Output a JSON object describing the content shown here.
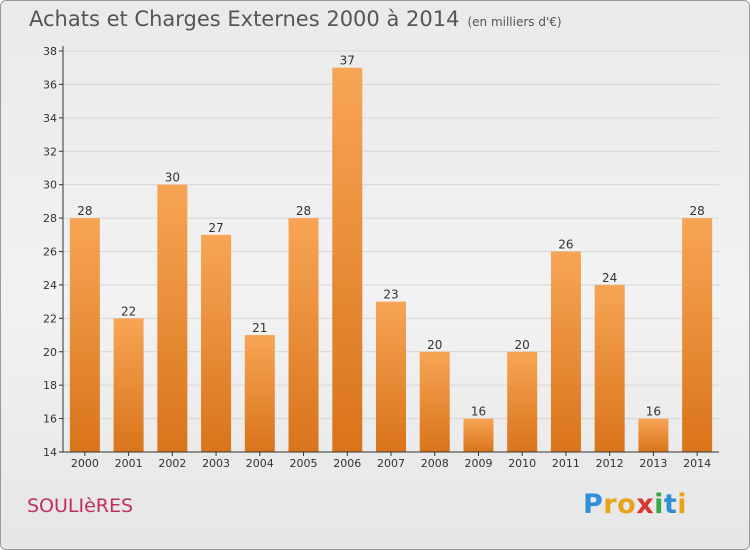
{
  "header": {
    "title": "Achats et Charges Externes 2000 à 2014",
    "subtitle": "(en milliers d'€)"
  },
  "footer": {
    "commune": "SOULIèRES",
    "brand_letters": [
      "P",
      "r",
      "o",
      "x",
      "i",
      "t",
      "i"
    ],
    "brand_colors": [
      "#2f8fd8",
      "#e8a21c",
      "#e8a21c",
      "#d8362f",
      "#3aa648",
      "#2f8fd8",
      "#e8a21c"
    ]
  },
  "colors": {
    "bar_top": "#f7a555",
    "bar_bottom": "#d9741a",
    "grid": "#d6d6d6",
    "axis": "#333333",
    "label": "#333333"
  },
  "chart_data": {
    "type": "bar",
    "title": "Achats et Charges Externes 2000 à 2014",
    "subtitle": "(en milliers d'€)",
    "categories": [
      "2000",
      "2001",
      "2002",
      "2003",
      "2004",
      "2005",
      "2006",
      "2007",
      "2008",
      "2009",
      "2010",
      "2011",
      "2012",
      "2013",
      "2014"
    ],
    "values": [
      28,
      22,
      30,
      27,
      21,
      28,
      37,
      23,
      20,
      16,
      20,
      26,
      24,
      16,
      28
    ],
    "xlabel": "",
    "ylabel": "",
    "ylim": [
      14,
      38
    ],
    "yticks": [
      14,
      16,
      18,
      20,
      22,
      24,
      26,
      28,
      30,
      32,
      34,
      36,
      38
    ],
    "grid": true,
    "legend": "none"
  }
}
